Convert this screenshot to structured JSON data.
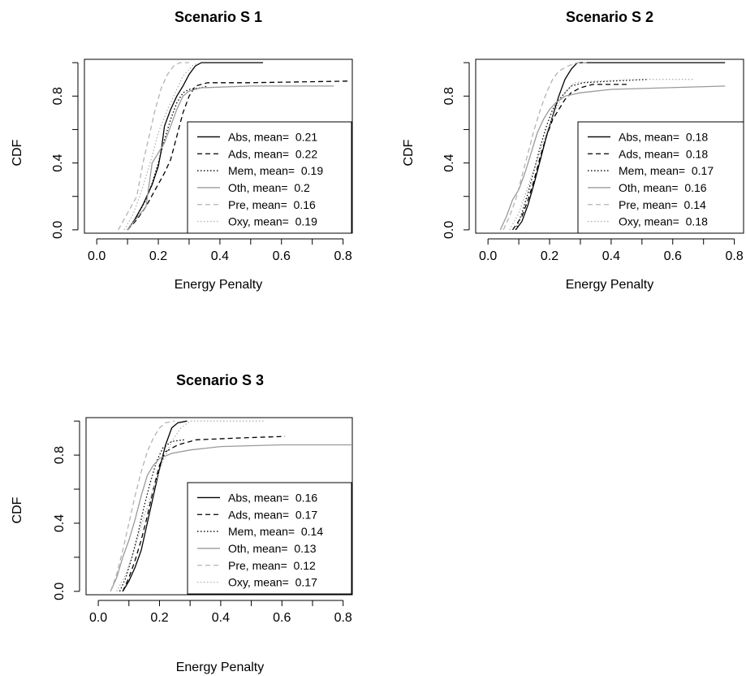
{
  "chart_data": [
    {
      "type": "line",
      "title": "Scenario S 1",
      "xlabel": "Energy Penalty",
      "ylabel": "CDF",
      "xlim": [
        -0.04,
        0.83
      ],
      "ylim": [
        -0.02,
        1.02
      ],
      "xticks": [
        "0.0",
        "0.2",
        "0.4",
        "0.6",
        "0.8"
      ],
      "yticks": [
        "0.0",
        "0.4",
        "0.8"
      ],
      "legend_position": "bottom-right",
      "grid": false,
      "series": [
        {
          "name": "Abs, mean=  0.21",
          "color": "#000000",
          "dash": "solid",
          "points": [
            [
              0.1,
              0.0
            ],
            [
              0.12,
              0.05
            ],
            [
              0.15,
              0.15
            ],
            [
              0.18,
              0.27
            ],
            [
              0.2,
              0.38
            ],
            [
              0.21,
              0.48
            ],
            [
              0.22,
              0.62
            ],
            [
              0.24,
              0.72
            ],
            [
              0.26,
              0.8
            ],
            [
              0.28,
              0.86
            ],
            [
              0.3,
              0.93
            ],
            [
              0.32,
              0.98
            ],
            [
              0.34,
              1.0
            ],
            [
              0.54,
              1.0
            ]
          ]
        },
        {
          "name": "Ads, mean=  0.22",
          "color": "#000000",
          "dash": "6,4",
          "points": [
            [
              0.1,
              0.0
            ],
            [
              0.13,
              0.06
            ],
            [
              0.16,
              0.14
            ],
            [
              0.19,
              0.24
            ],
            [
              0.22,
              0.34
            ],
            [
              0.24,
              0.42
            ],
            [
              0.26,
              0.56
            ],
            [
              0.28,
              0.7
            ],
            [
              0.3,
              0.8
            ],
            [
              0.32,
              0.86
            ],
            [
              0.36,
              0.88
            ],
            [
              0.5,
              0.88
            ],
            [
              0.82,
              0.89
            ]
          ]
        },
        {
          "name": "Mem, mean=  0.19",
          "color": "#000000",
          "dash": "1.5,2.5",
          "points": [
            [
              0.1,
              0.0
            ],
            [
              0.13,
              0.08
            ],
            [
              0.16,
              0.18
            ],
            [
              0.18,
              0.28
            ],
            [
              0.2,
              0.4
            ],
            [
              0.22,
              0.54
            ],
            [
              0.24,
              0.66
            ],
            [
              0.26,
              0.76
            ],
            [
              0.28,
              0.82
            ],
            [
              0.3,
              0.84
            ],
            [
              0.34,
              0.85
            ],
            [
              0.36,
              0.86
            ]
          ]
        },
        {
          "name": "Oth, mean=  0.2",
          "color": "#9a9a9a",
          "dash": "solid",
          "points": [
            [
              0.1,
              0.0
            ],
            [
              0.13,
              0.07
            ],
            [
              0.16,
              0.14
            ],
            [
              0.18,
              0.4
            ],
            [
              0.2,
              0.46
            ],
            [
              0.22,
              0.52
            ],
            [
              0.24,
              0.62
            ],
            [
              0.26,
              0.72
            ],
            [
              0.28,
              0.8
            ],
            [
              0.3,
              0.83
            ],
            [
              0.34,
              0.85
            ],
            [
              0.5,
              0.86
            ],
            [
              0.77,
              0.86
            ]
          ]
        },
        {
          "name": "Pre, mean=  0.16",
          "color": "#b3b3b3",
          "dash": "6,4",
          "points": [
            [
              0.07,
              0.0
            ],
            [
              0.1,
              0.1
            ],
            [
              0.13,
              0.2
            ],
            [
              0.15,
              0.4
            ],
            [
              0.17,
              0.56
            ],
            [
              0.19,
              0.72
            ],
            [
              0.21,
              0.85
            ],
            [
              0.23,
              0.93
            ],
            [
              0.25,
              0.98
            ],
            [
              0.27,
              1.0
            ],
            [
              0.3,
              1.0
            ]
          ]
        },
        {
          "name": "Oxy, mean=  0.19",
          "color": "#b3b3b3",
          "dash": "1.5,2.5",
          "points": [
            [
              0.09,
              0.0
            ],
            [
              0.12,
              0.1
            ],
            [
              0.15,
              0.26
            ],
            [
              0.18,
              0.44
            ],
            [
              0.2,
              0.58
            ],
            [
              0.23,
              0.72
            ],
            [
              0.26,
              0.84
            ],
            [
              0.28,
              0.92
            ],
            [
              0.31,
              0.98
            ],
            [
              0.33,
              1.0
            ]
          ]
        }
      ]
    },
    {
      "type": "line",
      "title": "Scenario S 2",
      "xlabel": "Energy Penalty",
      "ylabel": "CDF",
      "xlim": [
        -0.04,
        0.83
      ],
      "ylim": [
        -0.02,
        1.02
      ],
      "xticks": [
        "0.0",
        "0.2",
        "0.4",
        "0.6",
        "0.8"
      ],
      "yticks": [
        "0.0",
        "0.4",
        "0.8"
      ],
      "legend_position": "bottom-right",
      "grid": false,
      "series": [
        {
          "name": "Abs, mean=  0.18",
          "color": "#000000",
          "dash": "solid",
          "points": [
            [
              0.09,
              0.0
            ],
            [
              0.11,
              0.05
            ],
            [
              0.13,
              0.15
            ],
            [
              0.15,
              0.28
            ],
            [
              0.17,
              0.42
            ],
            [
              0.19,
              0.56
            ],
            [
              0.21,
              0.68
            ],
            [
              0.23,
              0.8
            ],
            [
              0.25,
              0.9
            ],
            [
              0.27,
              0.96
            ],
            [
              0.29,
              1.0
            ],
            [
              0.77,
              1.0
            ]
          ]
        },
        {
          "name": "Ads, mean=  0.18",
          "color": "#000000",
          "dash": "6,4",
          "points": [
            [
              0.08,
              0.0
            ],
            [
              0.11,
              0.08
            ],
            [
              0.13,
              0.18
            ],
            [
              0.15,
              0.3
            ],
            [
              0.17,
              0.44
            ],
            [
              0.19,
              0.56
            ],
            [
              0.21,
              0.66
            ],
            [
              0.23,
              0.72
            ],
            [
              0.25,
              0.78
            ],
            [
              0.27,
              0.82
            ],
            [
              0.3,
              0.85
            ],
            [
              0.34,
              0.87
            ],
            [
              0.45,
              0.87
            ]
          ]
        },
        {
          "name": "Mem, mean=  0.17",
          "color": "#000000",
          "dash": "1.5,2.5",
          "points": [
            [
              0.09,
              0.0
            ],
            [
              0.11,
              0.1
            ],
            [
              0.13,
              0.22
            ],
            [
              0.15,
              0.36
            ],
            [
              0.17,
              0.5
            ],
            [
              0.19,
              0.62
            ],
            [
              0.21,
              0.72
            ],
            [
              0.24,
              0.8
            ],
            [
              0.27,
              0.86
            ],
            [
              0.31,
              0.88
            ],
            [
              0.4,
              0.89
            ],
            [
              0.52,
              0.9
            ]
          ]
        },
        {
          "name": "Oth, mean=  0.16",
          "color": "#9a9a9a",
          "dash": "solid",
          "points": [
            [
              0.04,
              0.0
            ],
            [
              0.06,
              0.08
            ],
            [
              0.08,
              0.18
            ],
            [
              0.1,
              0.24
            ],
            [
              0.12,
              0.34
            ],
            [
              0.14,
              0.46
            ],
            [
              0.16,
              0.58
            ],
            [
              0.18,
              0.66
            ],
            [
              0.2,
              0.72
            ],
            [
              0.22,
              0.76
            ],
            [
              0.25,
              0.8
            ],
            [
              0.3,
              0.82
            ],
            [
              0.4,
              0.84
            ],
            [
              0.77,
              0.86
            ]
          ]
        },
        {
          "name": "Pre, mean=  0.14",
          "color": "#b3b3b3",
          "dash": "6,4",
          "points": [
            [
              0.05,
              0.0
            ],
            [
              0.07,
              0.08
            ],
            [
              0.09,
              0.18
            ],
            [
              0.11,
              0.32
            ],
            [
              0.13,
              0.46
            ],
            [
              0.15,
              0.6
            ],
            [
              0.17,
              0.72
            ],
            [
              0.19,
              0.82
            ],
            [
              0.21,
              0.9
            ],
            [
              0.23,
              0.95
            ],
            [
              0.26,
              0.98
            ],
            [
              0.29,
              1.0
            ],
            [
              0.32,
              1.0
            ]
          ]
        },
        {
          "name": "Oxy, mean=  0.18",
          "color": "#b3b3b3",
          "dash": "1.5,2.5",
          "points": [
            [
              0.07,
              0.0
            ],
            [
              0.1,
              0.1
            ],
            [
              0.13,
              0.26
            ],
            [
              0.16,
              0.42
            ],
            [
              0.19,
              0.58
            ],
            [
              0.22,
              0.72
            ],
            [
              0.25,
              0.82
            ],
            [
              0.28,
              0.88
            ],
            [
              0.35,
              0.89
            ],
            [
              0.5,
              0.9
            ],
            [
              0.67,
              0.9
            ]
          ]
        }
      ]
    },
    {
      "type": "line",
      "title": "Scenario S 3",
      "xlabel": "Energy Penalty",
      "ylabel": "CDF",
      "xlim": [
        -0.04,
        0.83
      ],
      "ylim": [
        -0.02,
        1.02
      ],
      "xticks": [
        "0.0",
        "0.2",
        "0.4",
        "0.6",
        "0.8"
      ],
      "yticks": [
        "0.0",
        "0.4",
        "0.8"
      ],
      "legend_position": "bottom-right",
      "grid": false,
      "series": [
        {
          "name": "Abs, mean=  0.16",
          "color": "#000000",
          "dash": "solid",
          "points": [
            [
              0.08,
              0.0
            ],
            [
              0.1,
              0.06
            ],
            [
              0.12,
              0.14
            ],
            [
              0.14,
              0.24
            ],
            [
              0.16,
              0.4
            ],
            [
              0.18,
              0.56
            ],
            [
              0.2,
              0.72
            ],
            [
              0.22,
              0.86
            ],
            [
              0.24,
              0.96
            ],
            [
              0.26,
              0.99
            ],
            [
              0.29,
              1.0
            ]
          ]
        },
        {
          "name": "Ads, mean=  0.17",
          "color": "#000000",
          "dash": "6,4",
          "points": [
            [
              0.08,
              0.0
            ],
            [
              0.1,
              0.08
            ],
            [
              0.12,
              0.18
            ],
            [
              0.14,
              0.3
            ],
            [
              0.16,
              0.44
            ],
            [
              0.18,
              0.6
            ],
            [
              0.2,
              0.74
            ],
            [
              0.22,
              0.82
            ],
            [
              0.26,
              0.86
            ],
            [
              0.32,
              0.89
            ],
            [
              0.45,
              0.9
            ],
            [
              0.61,
              0.91
            ]
          ]
        },
        {
          "name": "Mem, mean=  0.14",
          "color": "#000000",
          "dash": "1.5,2.5",
          "points": [
            [
              0.07,
              0.0
            ],
            [
              0.09,
              0.08
            ],
            [
              0.11,
              0.2
            ],
            [
              0.13,
              0.34
            ],
            [
              0.15,
              0.5
            ],
            [
              0.17,
              0.64
            ],
            [
              0.19,
              0.76
            ],
            [
              0.21,
              0.84
            ],
            [
              0.24,
              0.88
            ],
            [
              0.28,
              0.89
            ]
          ]
        },
        {
          "name": "Oth, mean=  0.13",
          "color": "#9a9a9a",
          "dash": "solid",
          "points": [
            [
              0.04,
              0.0
            ],
            [
              0.06,
              0.08
            ],
            [
              0.08,
              0.2
            ],
            [
              0.1,
              0.3
            ],
            [
              0.12,
              0.42
            ],
            [
              0.14,
              0.56
            ],
            [
              0.16,
              0.68
            ],
            [
              0.18,
              0.74
            ],
            [
              0.2,
              0.78
            ],
            [
              0.24,
              0.81
            ],
            [
              0.3,
              0.83
            ],
            [
              0.4,
              0.85
            ],
            [
              0.6,
              0.86
            ],
            [
              0.83,
              0.86
            ]
          ]
        },
        {
          "name": "Pre, mean=  0.12",
          "color": "#b3b3b3",
          "dash": "6,4",
          "points": [
            [
              0.04,
              0.0
            ],
            [
              0.06,
              0.1
            ],
            [
              0.08,
              0.24
            ],
            [
              0.1,
              0.4
            ],
            [
              0.12,
              0.56
            ],
            [
              0.14,
              0.7
            ],
            [
              0.16,
              0.82
            ],
            [
              0.18,
              0.9
            ],
            [
              0.2,
              0.96
            ],
            [
              0.22,
              0.99
            ],
            [
              0.25,
              1.0
            ]
          ]
        },
        {
          "name": "Oxy, mean=  0.17",
          "color": "#b3b3b3",
          "dash": "1.5,2.5",
          "points": [
            [
              0.06,
              0.0
            ],
            [
              0.09,
              0.1
            ],
            [
              0.12,
              0.26
            ],
            [
              0.15,
              0.44
            ],
            [
              0.18,
              0.6
            ],
            [
              0.21,
              0.76
            ],
            [
              0.24,
              0.88
            ],
            [
              0.27,
              0.96
            ],
            [
              0.3,
              1.0
            ],
            [
              0.54,
              1.0
            ]
          ]
        }
      ]
    }
  ]
}
